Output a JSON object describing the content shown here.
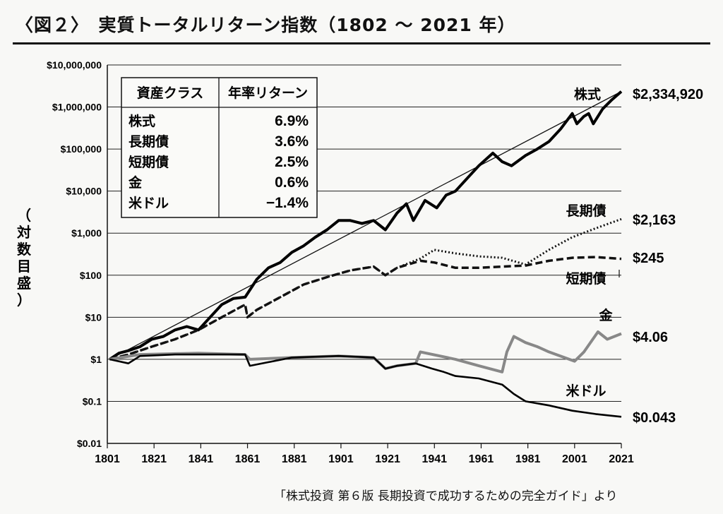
{
  "figure": {
    "title": "〈図２〉　実質トータルリターン指数（1802 ～ 2021 年）",
    "source": "「株式投資 第６版 長期投資で成功するための完全ガイド」より"
  },
  "chart_data": {
    "type": "line",
    "title": "実質トータルリターン指数（1802 ～ 2021 年）",
    "ylabel": "（対数目盛）",
    "xlabel": "",
    "yscale": "log",
    "ylim": [
      0.01,
      10000000
    ],
    "xlim": [
      1801,
      2021
    ],
    "grid": "horizontal",
    "xticks": [
      "1801",
      "1821",
      "1841",
      "1861",
      "1881",
      "1901",
      "1921",
      "1941",
      "1961",
      "1981",
      "2001",
      "2021"
    ],
    "yticks": [
      {
        "v": 10000000,
        "label": "$10,000,000"
      },
      {
        "v": 1000000,
        "label": "$1,000,000"
      },
      {
        "v": 100000,
        "label": "$100,000"
      },
      {
        "v": 10000,
        "label": "$10,000"
      },
      {
        "v": 1000,
        "label": "$1,000"
      },
      {
        "v": 100,
        "label": "$100"
      },
      {
        "v": 10,
        "label": "$10"
      },
      {
        "v": 1,
        "label": "$1"
      },
      {
        "v": 0.1,
        "label": "$0.1"
      },
      {
        "v": 0.01,
        "label": "$0.01"
      }
    ],
    "table": {
      "headers": [
        "資産クラス",
        "年率リターン"
      ],
      "rows": [
        [
          "株式",
          "6.9%"
        ],
        [
          "長期債",
          "3.6%"
        ],
        [
          "短期債",
          "2.5%"
        ],
        [
          "金",
          "0.6%"
        ],
        [
          "米ドル",
          "−1.4%"
        ]
      ]
    },
    "trendline": {
      "x": [
        1802,
        2021
      ],
      "y": [
        1,
        2334920
      ]
    },
    "series": [
      {
        "name": "株式",
        "end_label": "$2,334,920",
        "style": "solid-thick",
        "x": [
          1802,
          1806,
          1810,
          1815,
          1820,
          1825,
          1830,
          1835,
          1840,
          1845,
          1850,
          1855,
          1860,
          1865,
          1870,
          1875,
          1880,
          1885,
          1890,
          1895,
          1900,
          1905,
          1910,
          1915,
          1920,
          1925,
          1929,
          1932,
          1937,
          1942,
          1946,
          1950,
          1955,
          1960,
          1966,
          1970,
          1974,
          1980,
          1985,
          1990,
          1995,
          2000,
          2002,
          2005,
          2007,
          2009,
          2013,
          2017,
          2021
        ],
        "y": [
          1,
          1.4,
          1.6,
          2,
          3,
          3.5,
          5,
          6,
          5,
          10,
          20,
          28,
          30,
          80,
          150,
          200,
          350,
          500,
          800,
          1200,
          2000,
          2000,
          1700,
          2000,
          1200,
          3000,
          5000,
          2000,
          6000,
          4000,
          8000,
          10000,
          20000,
          40000,
          80000,
          50000,
          40000,
          70000,
          100000,
          150000,
          300000,
          700000,
          400000,
          600000,
          700000,
          400000,
          900000,
          1500000,
          2334920
        ]
      },
      {
        "name": "長期債",
        "end_label": "$2,163",
        "style": "dotted",
        "x": [
          1802,
          1810,
          1820,
          1830,
          1840,
          1850,
          1860,
          1861,
          1865,
          1875,
          1885,
          1895,
          1905,
          1915,
          1920,
          1925,
          1935,
          1941,
          1950,
          1960,
          1970,
          1980,
          1990,
          2000,
          2010,
          2021
        ],
        "y": [
          1,
          1.3,
          2,
          3,
          5,
          10,
          20,
          10,
          15,
          30,
          60,
          90,
          130,
          160,
          100,
          150,
          250,
          400,
          330,
          280,
          260,
          180,
          400,
          800,
          1300,
          2163
        ]
      },
      {
        "name": "短期債",
        "end_label": "$245",
        "style": "dashed",
        "x": [
          1802,
          1810,
          1820,
          1830,
          1840,
          1850,
          1860,
          1861,
          1865,
          1875,
          1885,
          1895,
          1905,
          1915,
          1920,
          1925,
          1935,
          1941,
          1950,
          1960,
          1970,
          1980,
          1990,
          2000,
          2010,
          2021
        ],
        "y": [
          1,
          1.3,
          2,
          3,
          5,
          10,
          20,
          10,
          15,
          30,
          60,
          90,
          130,
          160,
          100,
          150,
          220,
          200,
          150,
          150,
          160,
          170,
          220,
          260,
          270,
          245
        ]
      },
      {
        "name": "金",
        "end_label": "$4.06",
        "style": "gray-thick",
        "x": [
          1802,
          1815,
          1840,
          1860,
          1862,
          1880,
          1900,
          1915,
          1920,
          1925,
          1933,
          1935,
          1950,
          1960,
          1970,
          1972,
          1975,
          1980,
          1985,
          1990,
          2001,
          2005,
          2011,
          2015,
          2021
        ],
        "y": [
          1,
          1.3,
          1.4,
          1.3,
          1,
          1.1,
          1.2,
          1.1,
          0.6,
          0.7,
          0.8,
          1.5,
          1.0,
          0.7,
          0.5,
          1.5,
          3.5,
          2.5,
          2.0,
          1.5,
          0.9,
          1.5,
          4.5,
          3.0,
          4.06
        ]
      },
      {
        "name": "米ドル",
        "end_label": "$0.043",
        "style": "solid",
        "x": [
          1802,
          1810,
          1815,
          1830,
          1840,
          1860,
          1862,
          1880,
          1900,
          1915,
          1920,
          1925,
          1933,
          1940,
          1945,
          1950,
          1960,
          1970,
          1975,
          1980,
          1990,
          2000,
          2010,
          2021
        ],
        "y": [
          1,
          0.8,
          1.2,
          1.3,
          1.3,
          1.3,
          0.7,
          1.1,
          1.2,
          1.1,
          0.6,
          0.7,
          0.8,
          0.6,
          0.5,
          0.4,
          0.35,
          0.25,
          0.15,
          0.1,
          0.08,
          0.06,
          0.05,
          0.043
        ]
      }
    ],
    "series_labels": [
      "株式",
      "長期債",
      "短期債",
      "金",
      "米ドル"
    ]
  }
}
